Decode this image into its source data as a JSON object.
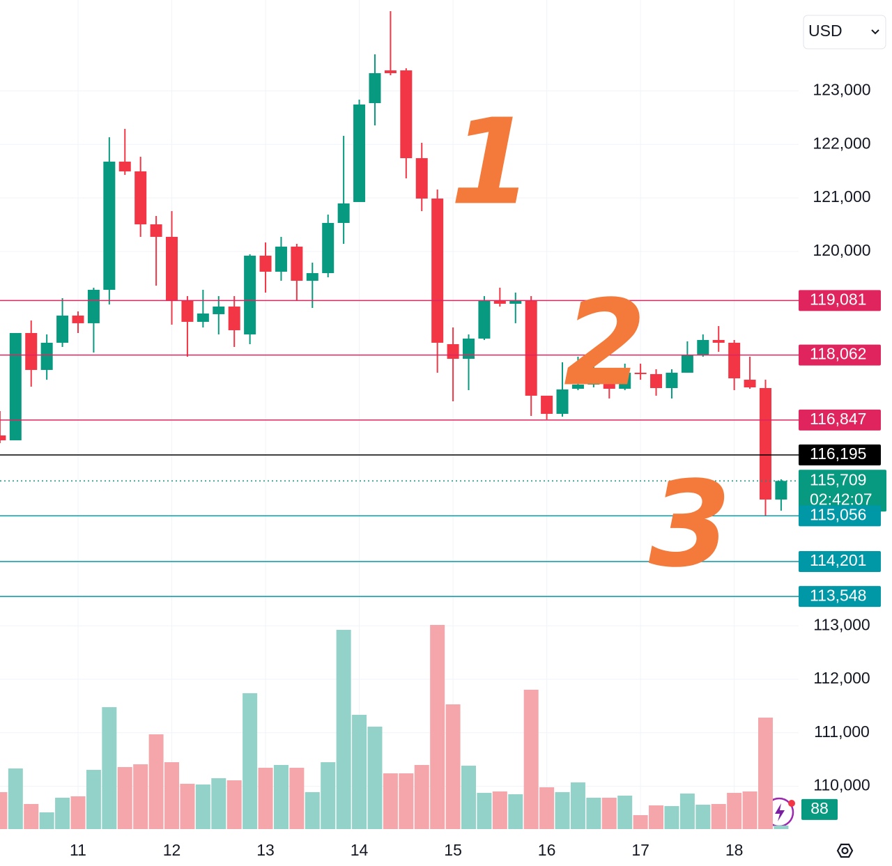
{
  "chart_data": {
    "type": "candlestick",
    "currency": "USD",
    "categories": [
      null,
      null,
      null,
      null,
      null,
      "11",
      null,
      null,
      null,
      null,
      null,
      "12",
      null,
      null,
      null,
      null,
      null,
      "13",
      null,
      null,
      null,
      null,
      null,
      "14",
      null,
      null,
      null,
      null,
      null,
      "15",
      null,
      null,
      null,
      null,
      null,
      "16",
      null,
      null,
      null,
      null,
      null,
      "17",
      null,
      null,
      null,
      null,
      null,
      "18",
      null,
      null,
      null
    ],
    "open": [
      116559,
      116468,
      118474,
      117784,
      118292,
      118800,
      118657,
      119282,
      121678,
      121496,
      120506,
      120272,
      119073,
      118683,
      118826,
      118969,
      118448,
      119920,
      119620,
      120089,
      119451,
      119594,
      120532,
      120923,
      122772,
      123384,
      123384,
      121743,
      120988,
      118266,
      117992,
      118370,
      119073,
      119021,
      119073,
      117302,
      116963,
      117432,
      117510,
      117667,
      117432,
      117732,
      117706,
      117445,
      117732,
      118057,
      118344,
      118292,
      117601,
      117445,
      115361
    ],
    "high": [
      117015,
      118474,
      118709,
      118448,
      119125,
      118878,
      119320,
      122134,
      122290,
      121769,
      120662,
      120753,
      119164,
      119282,
      119164,
      119164,
      119946,
      120167,
      120272,
      120141,
      119790,
      120688,
      122160,
      122837,
      123684,
      124492,
      123423,
      122030,
      121157,
      118578,
      118448,
      119164,
      119321,
      119230,
      119164,
      117302,
      117927,
      118031,
      117953,
      117797,
      117901,
      117901,
      117797,
      117797,
      118318,
      118448,
      118604,
      118344,
      118031,
      117601,
      115739
    ],
    "low": [
      116416,
      116468,
      117471,
      117601,
      118214,
      118474,
      118110,
      119008,
      121431,
      120272,
      119360,
      118630,
      118031,
      118578,
      118448,
      118214,
      118266,
      119230,
      119451,
      119073,
      118943,
      119516,
      120141,
      120923,
      122356,
      123293,
      121366,
      120753,
      117732,
      117198,
      117406,
      118344,
      118969,
      118657,
      116924,
      116859,
      116911,
      117406,
      117458,
      117250,
      117406,
      117601,
      117302,
      117250,
      117732,
      118031,
      118123,
      117406,
      117432,
      115062,
      115153
    ],
    "close": [
      116468,
      118474,
      117784,
      118292,
      118800,
      118657,
      119282,
      121678,
      121496,
      120506,
      120272,
      119073,
      118683,
      118839,
      118969,
      118526,
      119920,
      119620,
      120089,
      119451,
      119594,
      120532,
      120897,
      122746,
      123332,
      123332,
      121743,
      120988,
      118292,
      117992,
      118370,
      119073,
      119021,
      119073,
      117302,
      116963,
      117419,
      117510,
      117693,
      117432,
      117732,
      117706,
      117445,
      117732,
      118057,
      118344,
      118292,
      117627,
      117458,
      115361,
      115709
    ],
    "volume": [
      919,
      1508,
      624,
      416,
      780,
      815,
      1473,
      3033,
      1543,
      1612,
      2357,
      1664,
      1127,
      1109,
      1265,
      1213,
      3380,
      1525,
      1595,
      1525,
      919,
      1664,
      4957,
      2843,
      2548,
      1387,
      1387,
      1595,
      5079,
      3103,
      1577,
      901,
      936,
      867,
      3467,
      1040,
      919,
      1161,
      780,
      780,
      832,
      347,
      589,
      572,
      884,
      607,
      624,
      901,
      936,
      2773,
      88
    ],
    "volume_ylim": [
      0,
      5200
    ],
    "up_color": "#089981",
    "down_color": "#f23645",
    "volume_up_color": "#92d2c9",
    "volume_down_color": "#f5a6aa",
    "ylim": [
      109200,
      124700
    ],
    "yticks": [
      {
        "value": 110000,
        "label": "110,000"
      },
      {
        "value": 111000,
        "label": "111,000"
      },
      {
        "value": 112000,
        "label": "112,000"
      },
      {
        "value": 113000,
        "label": "113,000"
      },
      {
        "value": 120000,
        "label": "120,000"
      },
      {
        "value": 121000,
        "label": "121,000"
      },
      {
        "value": 122000,
        "label": "122,000"
      },
      {
        "value": 123000,
        "label": "123,000"
      }
    ],
    "grid": true,
    "levels": [
      {
        "value": 119081,
        "label": "119,081",
        "color": "#e0245e"
      },
      {
        "value": 118062,
        "label": "118,062",
        "color": "#e0245e"
      },
      {
        "value": 116847,
        "label": "116,847",
        "color": "#e0245e"
      },
      {
        "value": 116195,
        "label": "116,195",
        "color": "#000000"
      },
      {
        "value": 115709,
        "label": "115,709",
        "color": "#089981",
        "dotted": true
      },
      {
        "value": 115056,
        "label": "115,056",
        "color": "#0097a7"
      },
      {
        "value": 114201,
        "label": "114,201",
        "color": "#0097a7"
      },
      {
        "value": 113548,
        "label": "113,548",
        "color": "#0097a7"
      }
    ],
    "countdown": "02:42:07",
    "annotations": [
      "1",
      "2",
      "3"
    ]
  }
}
